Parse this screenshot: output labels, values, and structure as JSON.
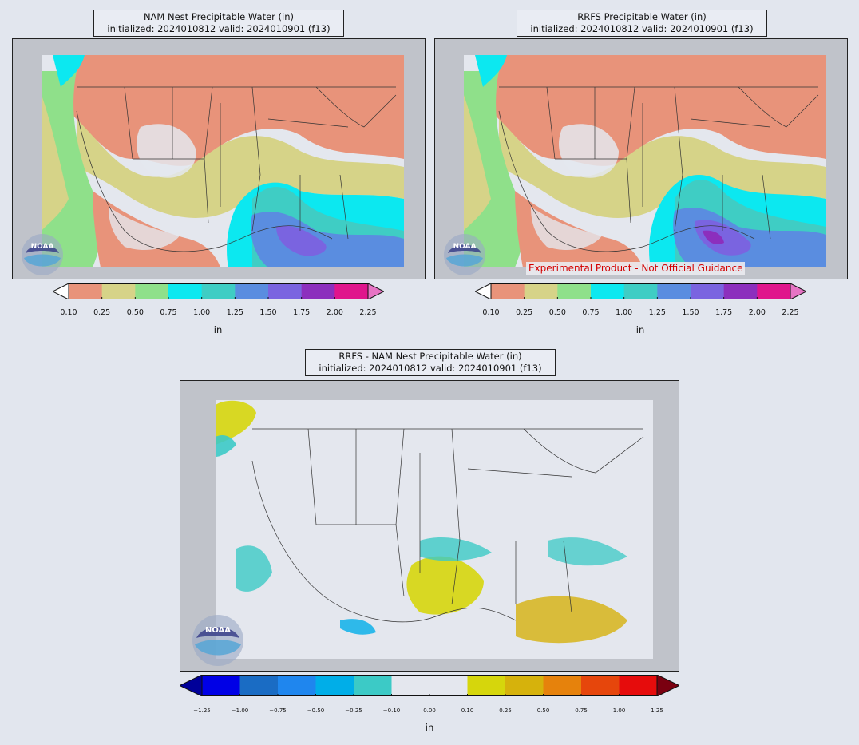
{
  "panels": [
    {
      "id": "nam",
      "title_line1": "NAM Nest Precipitable Water (in)",
      "title_line2": "initialized: 2024010812 valid: 2024010901 (f13)"
    },
    {
      "id": "rrfs",
      "title_line1": "RRFS Precipitable Water (in)",
      "title_line2": "initialized: 2024010812 valid: 2024010901 (f13)",
      "disclaimer": "Experimental Product - Not Official Guidance"
    },
    {
      "id": "diff",
      "title_line1": "RRFS - NAM Nest Precipitable Water (in)",
      "title_line2": "initialized: 2024010812 valid: 2024010901 (f13)"
    }
  ],
  "colorbar_pw": {
    "ticks": [
      "0.10",
      "0.25",
      "0.50",
      "0.75",
      "1.00",
      "1.25",
      "1.50",
      "1.75",
      "2.00",
      "2.25"
    ],
    "colors": [
      "#e8937a",
      "#d6d388",
      "#8fe08a",
      "#0ce8f0",
      "#3fcdc4",
      "#5a8de0",
      "#7a64e0",
      "#8c2fbd",
      "#e0158c"
    ],
    "under_color": "#ffffff",
    "over_color": "#e674c4",
    "unit": "in"
  },
  "colorbar_diff": {
    "ticks": [
      "−1.25",
      "−1.00",
      "−0.75",
      "−0.50",
      "−0.25",
      "−0.10",
      "0.00",
      "0.10",
      "0.25",
      "0.50",
      "0.75",
      "1.00",
      "1.25"
    ],
    "colors": [
      "#0000e6",
      "#1a6cc4",
      "#1f86ee",
      "#00aee8",
      "#3ccac6",
      "#e4e7ee",
      "#e4e7ee",
      "#d6d60c",
      "#d6b20c",
      "#e6820c",
      "#e6460c",
      "#e60c0c"
    ],
    "under_color": "#000099",
    "over_color": "#7a0010",
    "unit": "in"
  },
  "logo_text": "NOAA",
  "colors": {
    "background": "#e2e6ee",
    "land": "#e4e7ee",
    "outside_domain": "#c0c3ca",
    "water_gray": "#bfc2c9"
  }
}
